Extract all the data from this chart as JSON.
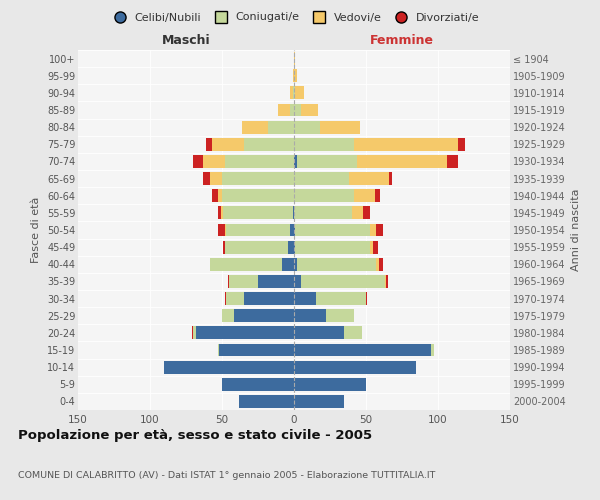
{
  "age_groups": [
    "100+",
    "95-99",
    "90-94",
    "85-89",
    "80-84",
    "75-79",
    "70-74",
    "65-69",
    "60-64",
    "55-59",
    "50-54",
    "45-49",
    "40-44",
    "35-39",
    "30-34",
    "25-29",
    "20-24",
    "15-19",
    "10-14",
    "5-9",
    "0-4"
  ],
  "birth_years": [
    "≤ 1904",
    "1905-1909",
    "1910-1914",
    "1915-1919",
    "1920-1924",
    "1925-1929",
    "1930-1934",
    "1935-1939",
    "1940-1944",
    "1945-1949",
    "1950-1954",
    "1955-1959",
    "1960-1964",
    "1965-1969",
    "1970-1974",
    "1975-1979",
    "1980-1984",
    "1985-1989",
    "1990-1994",
    "1995-1999",
    "2000-2004"
  ],
  "males": {
    "celibe": [
      0,
      0,
      0,
      0,
      0,
      0,
      0,
      0,
      0,
      1,
      3,
      4,
      8,
      25,
      35,
      42,
      68,
      52,
      90,
      50,
      38
    ],
    "coniugato": [
      0,
      0,
      1,
      3,
      18,
      35,
      48,
      50,
      50,
      48,
      44,
      44,
      50,
      20,
      12,
      8,
      2,
      1,
      0,
      0,
      0
    ],
    "vedovo": [
      0,
      1,
      2,
      8,
      18,
      22,
      15,
      8,
      3,
      2,
      1,
      0,
      0,
      0,
      0,
      0,
      0,
      0,
      0,
      0,
      0
    ],
    "divorziato": [
      0,
      0,
      0,
      0,
      0,
      4,
      7,
      5,
      4,
      2,
      5,
      1,
      0,
      1,
      1,
      0,
      1,
      0,
      0,
      0,
      0
    ]
  },
  "females": {
    "nubile": [
      0,
      0,
      0,
      0,
      0,
      0,
      2,
      0,
      0,
      0,
      1,
      1,
      2,
      5,
      15,
      22,
      35,
      95,
      85,
      50,
      35
    ],
    "coniugata": [
      0,
      0,
      1,
      5,
      18,
      42,
      42,
      38,
      42,
      40,
      52,
      52,
      55,
      58,
      35,
      20,
      12,
      2,
      0,
      0,
      0
    ],
    "vedova": [
      1,
      2,
      6,
      12,
      28,
      72,
      62,
      28,
      14,
      8,
      4,
      2,
      2,
      1,
      0,
      0,
      0,
      0,
      0,
      0,
      0
    ],
    "divorziata": [
      0,
      0,
      0,
      0,
      0,
      5,
      8,
      2,
      4,
      5,
      5,
      3,
      3,
      1,
      1,
      0,
      0,
      0,
      0,
      0,
      0
    ]
  },
  "colors": {
    "celibe": "#3d6b9e",
    "coniugato": "#c5d89b",
    "vedovo": "#f5c96a",
    "divorziato": "#cc2222"
  },
  "xlim": 150,
  "title": "Popolazione per età, sesso e stato civile - 2005",
  "subtitle": "COMUNE DI CALABRITTO (AV) - Dati ISTAT 1° gennaio 2005 - Elaborazione TUTTITALIA.IT",
  "ylabel_left": "Fasce di età",
  "ylabel_right": "Anni di nascita",
  "xlabel_left": "Maschi",
  "xlabel_right": "Femmine",
  "legend_labels": [
    "Celibi/Nubili",
    "Coniugati/e",
    "Vedovi/e",
    "Divorziati/e"
  ],
  "bg_color": "#e8e8e8",
  "plot_bg": "#f5f5f5"
}
